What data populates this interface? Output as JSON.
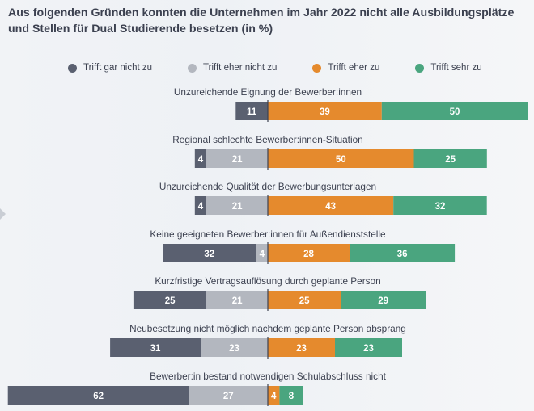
{
  "chart_data": {
    "type": "bar",
    "title": "Aus folgenden Gründen konnten die Unternehmen im Jahr 2022 nicht alle Ausbildungsplätze und Stellen für Dual Studierende besetzen (in %)",
    "legend": [
      {
        "name": "Trifft gar nicht zu",
        "color": "#5a6070"
      },
      {
        "name": "Trifft eher nicht zu",
        "color": "#b3b7bf"
      },
      {
        "name": "Trifft eher zu",
        "color": "#e58a2d"
      },
      {
        "name": "Trifft sehr zu",
        "color": "#4aa57f"
      }
    ],
    "categories": [
      "Unzureichende Eignung der Bewerber:innen",
      "Regional schlechte Bewerber:innen-Situation",
      "Unzureichende Qualität der Bewerbungsunterlagen",
      "Keine geeigneten Bewerber:innen für Außendienststelle",
      "Kurzfristige Vertragsauflösung durch geplante Person",
      "Neubesetzung nicht möglich nachdem geplante Person absprang",
      "Bewerber:in bestand notwendigen Schulabschluss nicht"
    ],
    "series": [
      {
        "name": "Trifft gar nicht zu",
        "values": [
          11,
          4,
          4,
          32,
          25,
          31,
          62
        ]
      },
      {
        "name": "Trifft eher nicht zu",
        "values": [
          0,
          21,
          21,
          4,
          21,
          23,
          27
        ]
      },
      {
        "name": "Trifft eher zu",
        "values": [
          39,
          50,
          43,
          28,
          25,
          23,
          4
        ]
      },
      {
        "name": "Trifft sehr zu",
        "values": [
          50,
          25,
          32,
          36,
          29,
          23,
          8
        ]
      }
    ],
    "legend_position": "top",
    "grid": false
  }
}
